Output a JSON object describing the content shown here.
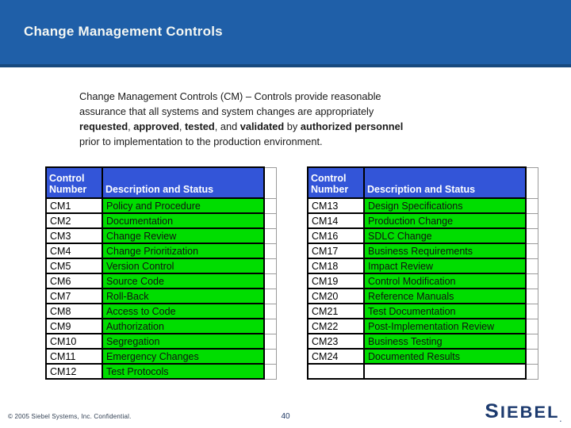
{
  "header": {
    "title": "Change Management Controls"
  },
  "body": {
    "lines": [
      {
        "segments": [
          {
            "text": "Change Management Controls (CM) – Controls provide reasonable"
          }
        ]
      },
      {
        "segments": [
          {
            "text": "assurance that all systems and system changes are appropriately"
          }
        ]
      },
      {
        "segments": [
          {
            "text": "requested",
            "bold": true
          },
          {
            "text": ", "
          },
          {
            "text": "approved",
            "bold": true
          },
          {
            "text": ", "
          },
          {
            "text": "tested",
            "bold": true
          },
          {
            "text": ", and "
          },
          {
            "text": "validated",
            "bold": true
          },
          {
            "text": " by "
          },
          {
            "text": "authorized personnel",
            "bold": true
          }
        ]
      },
      {
        "segments": [
          {
            "text": "prior to implementation to the production environment."
          }
        ]
      }
    ]
  },
  "tables": [
    {
      "headers": [
        "Control Number",
        "Description and Status"
      ],
      "rows": [
        [
          "CM1",
          "Policy and Procedure"
        ],
        [
          "CM2",
          "Documentation"
        ],
        [
          "CM3",
          "Change Review"
        ],
        [
          "CM4",
          "Change Prioritization"
        ],
        [
          "CM5",
          "Version Control"
        ],
        [
          "CM6",
          "Source Code"
        ],
        [
          "CM7",
          "Roll-Back"
        ],
        [
          "CM8",
          "Access to Code"
        ],
        [
          "CM9",
          "Authorization"
        ],
        [
          "CM10",
          "Segregation"
        ],
        [
          "CM11",
          "Emergency Changes"
        ],
        [
          "CM12",
          "Test Protocols"
        ]
      ]
    },
    {
      "headers": [
        "Control Number",
        "Description and Status"
      ],
      "rows": [
        [
          "CM13",
          "Design Specifications"
        ],
        [
          "CM14",
          "Production Change"
        ],
        [
          "CM16",
          "SDLC Change"
        ],
        [
          "CM17",
          "Business Requirements"
        ],
        [
          "CM18",
          "Impact Review"
        ],
        [
          "CM19",
          "Control Modification"
        ],
        [
          "CM20",
          "Reference Manuals"
        ],
        [
          "CM21",
          "Test Documentation"
        ],
        [
          "CM22",
          "Post-Implementation Review"
        ],
        [
          "CM23",
          "Business Testing"
        ],
        [
          "CM24",
          "Documented Results"
        ],
        [
          "",
          ""
        ]
      ]
    }
  ],
  "footer": {
    "copyright": "© 2005 Siebel Systems, Inc. Confidential.",
    "page_number": "40",
    "logo_text": "SIEBEL",
    "logo_mark": "."
  },
  "colors": {
    "title_bar_blue": "#1F5FA8",
    "title_bar_edge": "#17497E",
    "table_header_blue": "#3355D8",
    "status_green": "#00DD00",
    "logo_navy": "#1C3A6E"
  }
}
